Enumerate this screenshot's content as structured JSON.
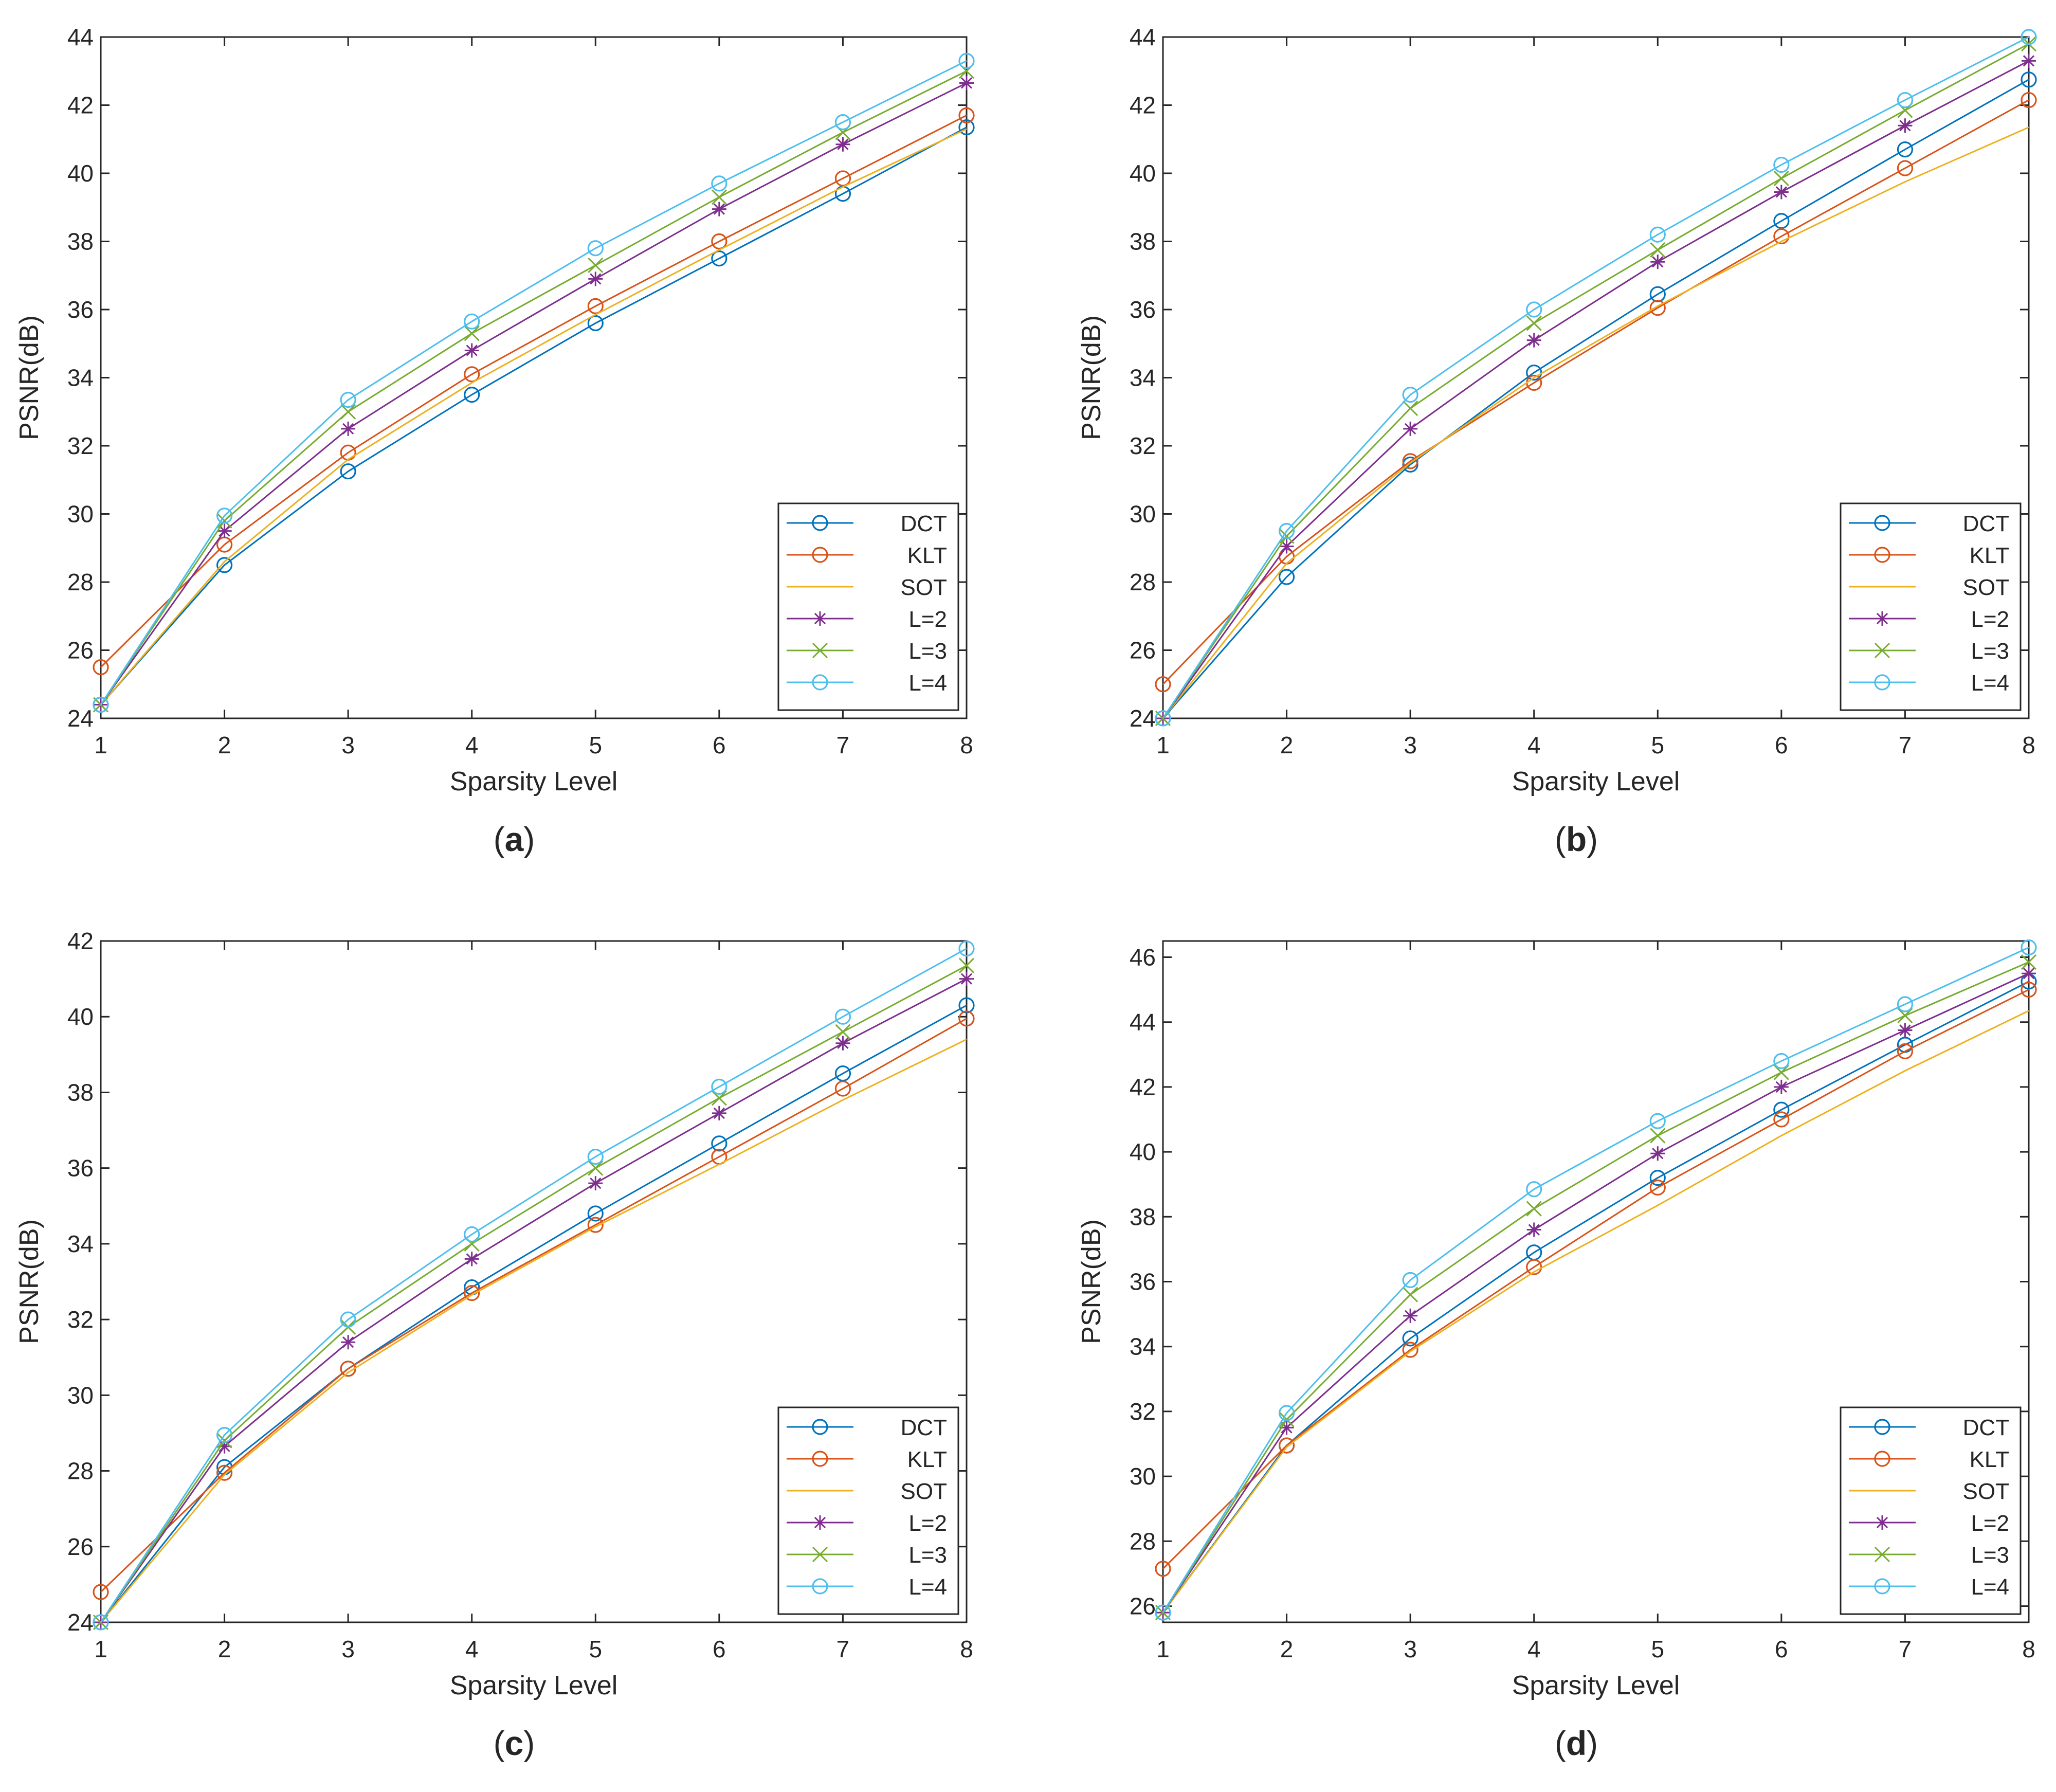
{
  "figure": {
    "background": "#ffffff",
    "axis_color": "#262626"
  },
  "series_styles": [
    {
      "name": "DCT",
      "color": "#0072BD",
      "marker": "circle"
    },
    {
      "name": "KLT",
      "color": "#D95319",
      "marker": "circle"
    },
    {
      "name": "SOT",
      "color": "#EDB120",
      "marker": "none"
    },
    {
      "name": "L=2",
      "color": "#7E2F8E",
      "marker": "asterisk"
    },
    {
      "name": "L=3",
      "color": "#77AC30",
      "marker": "x"
    },
    {
      "name": "L=4",
      "color": "#4DBEEE",
      "marker": "circle"
    }
  ],
  "chart_data": [
    {
      "type": "line",
      "caption_letter": "a",
      "xlabel": "Sparsity Level",
      "ylabel": "PSNR(dB)",
      "x": [
        1,
        2,
        3,
        4,
        5,
        6,
        7,
        8
      ],
      "xlim": [
        1,
        8
      ],
      "ylim": [
        24,
        44
      ],
      "xticks": [
        1,
        2,
        3,
        4,
        5,
        6,
        7,
        8
      ],
      "yticks": [
        24,
        26,
        28,
        30,
        32,
        34,
        36,
        38,
        40,
        42,
        44
      ],
      "legend_position": "bottom-right",
      "series": [
        {
          "name": "DCT",
          "values": [
            24.4,
            28.5,
            31.25,
            33.5,
            35.6,
            37.5,
            39.4,
            41.35
          ]
        },
        {
          "name": "KLT",
          "values": [
            25.5,
            29.1,
            31.8,
            34.1,
            36.1,
            38.0,
            39.85,
            41.7
          ]
        },
        {
          "name": "SOT",
          "values": [
            24.4,
            28.6,
            31.6,
            33.85,
            35.85,
            37.75,
            39.6,
            41.3
          ]
        },
        {
          "name": "L=2",
          "values": [
            24.4,
            29.5,
            32.5,
            34.8,
            36.9,
            38.95,
            40.85,
            42.65
          ]
        },
        {
          "name": "L=3",
          "values": [
            24.4,
            29.8,
            33.0,
            35.3,
            37.3,
            39.3,
            41.2,
            43.0
          ]
        },
        {
          "name": "L=4",
          "values": [
            24.4,
            29.95,
            33.35,
            35.65,
            37.8,
            39.7,
            41.5,
            43.3
          ]
        }
      ]
    },
    {
      "type": "line",
      "caption_letter": "b",
      "xlabel": "Sparsity Level",
      "ylabel": "PSNR(dB)",
      "x": [
        1,
        2,
        3,
        4,
        5,
        6,
        7,
        8
      ],
      "xlim": [
        1,
        8
      ],
      "ylim": [
        24,
        44
      ],
      "xticks": [
        1,
        2,
        3,
        4,
        5,
        6,
        7,
        8
      ],
      "yticks": [
        24,
        26,
        28,
        30,
        32,
        34,
        36,
        38,
        40,
        42,
        44
      ],
      "legend_position": "bottom-right",
      "series": [
        {
          "name": "DCT",
          "values": [
            24.0,
            28.15,
            31.45,
            34.15,
            36.45,
            38.6,
            40.7,
            42.75
          ]
        },
        {
          "name": "KLT",
          "values": [
            25.0,
            28.75,
            31.55,
            33.85,
            36.05,
            38.15,
            40.15,
            42.15
          ]
        },
        {
          "name": "SOT",
          "values": [
            24.0,
            28.55,
            31.5,
            34.0,
            36.1,
            38.0,
            39.75,
            41.35
          ]
        },
        {
          "name": "L=2",
          "values": [
            24.0,
            29.05,
            32.5,
            35.1,
            37.4,
            39.45,
            41.4,
            43.3
          ]
        },
        {
          "name": "L=3",
          "values": [
            24.0,
            29.35,
            33.1,
            35.6,
            37.75,
            39.85,
            41.85,
            43.8
          ]
        },
        {
          "name": "L=4",
          "values": [
            24.0,
            29.5,
            33.5,
            36.0,
            38.2,
            40.25,
            42.15,
            44.0
          ]
        }
      ]
    },
    {
      "type": "line",
      "caption_letter": "c",
      "xlabel": "Sparsity Level",
      "ylabel": "PSNR(dB)",
      "x": [
        1,
        2,
        3,
        4,
        5,
        6,
        7,
        8
      ],
      "xlim": [
        1,
        8
      ],
      "ylim": [
        24,
        42
      ],
      "xticks": [
        1,
        2,
        3,
        4,
        5,
        6,
        7,
        8
      ],
      "yticks": [
        24,
        26,
        28,
        30,
        32,
        34,
        36,
        38,
        40,
        42
      ],
      "legend_position": "bottom-right",
      "series": [
        {
          "name": "DCT",
          "values": [
            24.0,
            28.1,
            30.7,
            32.85,
            34.8,
            36.65,
            38.5,
            40.3
          ]
        },
        {
          "name": "KLT",
          "values": [
            24.8,
            27.95,
            30.7,
            32.7,
            34.5,
            36.3,
            38.1,
            39.95
          ]
        },
        {
          "name": "SOT",
          "values": [
            24.0,
            27.9,
            30.6,
            32.65,
            34.45,
            36.1,
            37.8,
            39.4
          ]
        },
        {
          "name": "L=2",
          "values": [
            24.0,
            28.65,
            31.4,
            33.6,
            35.6,
            37.45,
            39.3,
            41.0
          ]
        },
        {
          "name": "L=3",
          "values": [
            24.0,
            28.8,
            31.8,
            34.0,
            36.0,
            37.85,
            39.6,
            41.35
          ]
        },
        {
          "name": "L=4",
          "values": [
            24.0,
            28.95,
            32.0,
            34.25,
            36.3,
            38.15,
            40.0,
            41.8
          ]
        }
      ]
    },
    {
      "type": "line",
      "caption_letter": "d",
      "xlabel": "Sparsity Level",
      "ylabel": "PSNR(dB)",
      "x": [
        1,
        2,
        3,
        4,
        5,
        6,
        7,
        8
      ],
      "xlim": [
        1,
        8
      ],
      "ylim": [
        25.5,
        46.5
      ],
      "xticks": [
        1,
        2,
        3,
        4,
        5,
        6,
        7,
        8
      ],
      "yticks": [
        26,
        28,
        30,
        32,
        34,
        36,
        38,
        40,
        42,
        44,
        46
      ],
      "legend_position": "bottom-right",
      "series": [
        {
          "name": "DCT",
          "values": [
            25.8,
            30.95,
            34.25,
            36.9,
            39.2,
            41.3,
            43.3,
            45.25
          ]
        },
        {
          "name": "KLT",
          "values": [
            27.15,
            30.95,
            33.9,
            36.45,
            38.9,
            41.0,
            43.1,
            45.0
          ]
        },
        {
          "name": "SOT",
          "values": [
            25.8,
            30.9,
            33.85,
            36.3,
            38.35,
            40.5,
            42.5,
            44.35
          ]
        },
        {
          "name": "L=2",
          "values": [
            25.8,
            31.5,
            34.95,
            37.6,
            39.95,
            42.0,
            43.75,
            45.5
          ]
        },
        {
          "name": "L=3",
          "values": [
            25.8,
            31.75,
            35.6,
            38.25,
            40.5,
            42.45,
            44.2,
            45.85
          ]
        },
        {
          "name": "L=4",
          "values": [
            25.8,
            31.95,
            36.05,
            38.85,
            40.95,
            42.8,
            44.55,
            46.3
          ]
        }
      ]
    }
  ]
}
